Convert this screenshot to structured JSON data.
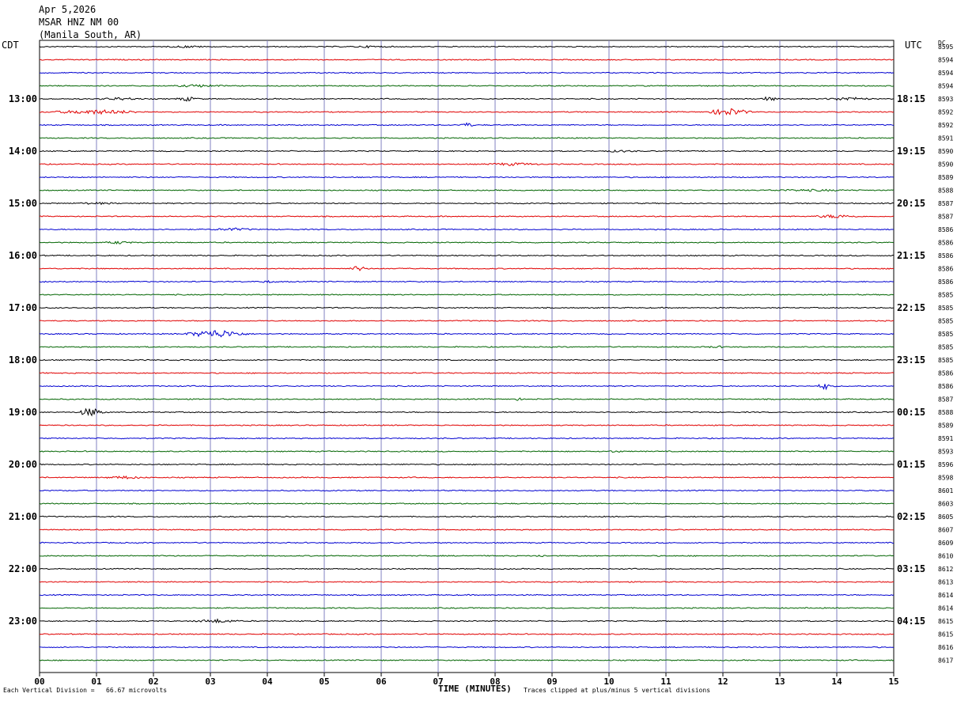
{
  "header": {
    "date": "Apr 5,2026",
    "station": "MSAR HNZ NM 00",
    "location": "(Manila South, AR)"
  },
  "left_timezone": "CDT",
  "right_timezone": "UTC",
  "dc_label": "DC",
  "footer": {
    "scale_note": "Each Vertical Division =   66.67 microvolts",
    "clip_note": "Traces clipped at plus/minus 5 vertical divisions"
  },
  "colors": {
    "trace_cycle": [
      "#000000",
      "#e00000",
      "#0000d0",
      "#006400"
    ],
    "grid_line": "#8080c0"
  },
  "chart_data": {
    "type": "helicorder",
    "xlabel": "TIME (MINUTES)",
    "x_ticks": [
      "00",
      "01",
      "02",
      "03",
      "04",
      "05",
      "06",
      "07",
      "08",
      "09",
      "10",
      "11",
      "12",
      "13",
      "14",
      "15"
    ],
    "xlim": [
      0,
      15
    ],
    "left_hour_labels": [
      "13:00",
      "14:00",
      "15:00",
      "16:00",
      "17:00",
      "18:00",
      "19:00",
      "20:00",
      "21:00",
      "22:00",
      "23:00"
    ],
    "right_hour_labels": [
      "18:15",
      "19:15",
      "20:15",
      "21:15",
      "22:15",
      "23:15",
      "00:15",
      "01:15",
      "02:15",
      "03:15",
      "04:15"
    ],
    "rows_per_hour": 4,
    "first_labeled_row": 4,
    "dc_offsets": [
      "8595",
      "8594",
      "8594",
      "8594",
      "8593",
      "8592",
      "8592",
      "8591",
      "8590",
      "8590",
      "8589",
      "8588",
      "8587",
      "8587",
      "8586",
      "8586",
      "8586",
      "8586",
      "8586",
      "8585",
      "8585",
      "8585",
      "8585",
      "8585",
      "8585",
      "8586",
      "8586",
      "8587",
      "8588",
      "8589",
      "8591",
      "8593",
      "8596",
      "8598",
      "8601",
      "8603",
      "8605",
      "8607",
      "8609",
      "8610",
      "8612",
      "8613",
      "8614",
      "8614",
      "8615",
      "8615",
      "8616",
      "8617"
    ],
    "events": [
      {
        "row": 0,
        "minute": 2.6,
        "amp": 3,
        "dur": 0.6
      },
      {
        "row": 0,
        "minute": 5.8,
        "amp": 3,
        "dur": 0.6
      },
      {
        "row": 3,
        "minute": 2.8,
        "amp": 4,
        "dur": 0.7
      },
      {
        "row": 4,
        "minute": 1.4,
        "amp": 4,
        "dur": 0.6
      },
      {
        "row": 4,
        "minute": 2.6,
        "amp": 6,
        "dur": 0.3
      },
      {
        "row": 4,
        "minute": 12.8,
        "amp": 7,
        "dur": 0.2
      },
      {
        "row": 4,
        "minute": 14.2,
        "amp": 5,
        "dur": 0.6
      },
      {
        "row": 5,
        "minute": 1.0,
        "amp": 6,
        "dur": 1.2
      },
      {
        "row": 5,
        "minute": 12.1,
        "amp": 10,
        "dur": 0.5
      },
      {
        "row": 6,
        "minute": 7.5,
        "amp": 6,
        "dur": 0.2
      },
      {
        "row": 8,
        "minute": 10.2,
        "amp": 3,
        "dur": 0.6
      },
      {
        "row": 9,
        "minute": 8.3,
        "amp": 4,
        "dur": 0.8
      },
      {
        "row": 11,
        "minute": 13.5,
        "amp": 3,
        "dur": 1.5
      },
      {
        "row": 12,
        "minute": 1.0,
        "amp": 3,
        "dur": 0.8
      },
      {
        "row": 13,
        "minute": 14.0,
        "amp": 5,
        "dur": 0.6
      },
      {
        "row": 14,
        "minute": 3.4,
        "amp": 4,
        "dur": 0.6
      },
      {
        "row": 15,
        "minute": 1.4,
        "amp": 4,
        "dur": 0.4
      },
      {
        "row": 17,
        "minute": 5.6,
        "amp": 8,
        "dur": 0.2
      },
      {
        "row": 17,
        "minute": 6.6,
        "amp": 4,
        "dur": 0.1
      },
      {
        "row": 18,
        "minute": 0.1,
        "amp": 3,
        "dur": 0.3
      },
      {
        "row": 18,
        "minute": 4.0,
        "amp": 3,
        "dur": 0.4
      },
      {
        "row": 22,
        "minute": 3.1,
        "amp": 11,
        "dur": 0.7
      },
      {
        "row": 23,
        "minute": 11.9,
        "amp": 3,
        "dur": 0.4
      },
      {
        "row": 26,
        "minute": 13.8,
        "amp": 9,
        "dur": 0.2
      },
      {
        "row": 27,
        "minute": 8.4,
        "amp": 5,
        "dur": 0.1
      },
      {
        "row": 28,
        "minute": 0.9,
        "amp": 12,
        "dur": 0.3
      },
      {
        "row": 31,
        "minute": 10.1,
        "amp": 3,
        "dur": 0.3
      },
      {
        "row": 33,
        "minute": 1.5,
        "amp": 4,
        "dur": 0.6
      },
      {
        "row": 38,
        "minute": 2.6,
        "amp": 2,
        "dur": 0.3
      },
      {
        "row": 39,
        "minute": 8.8,
        "amp": 3,
        "dur": 0.3
      },
      {
        "row": 44,
        "minute": 3.1,
        "amp": 5,
        "dur": 0.6
      }
    ]
  }
}
